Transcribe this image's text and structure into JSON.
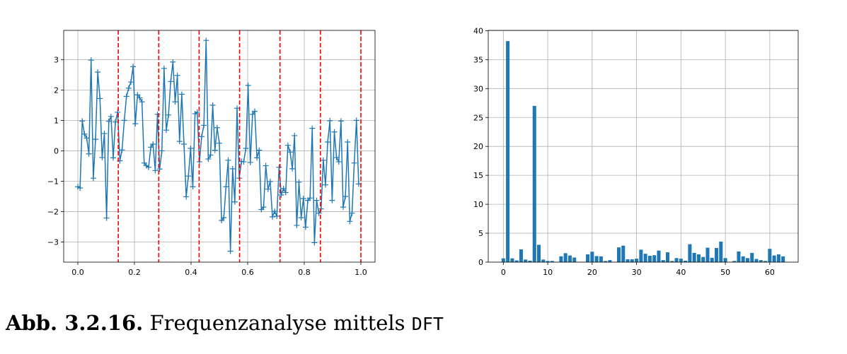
{
  "chart_data": [
    {
      "type": "line",
      "title": "",
      "xlabel": "",
      "ylabel": "",
      "xlim": [
        -0.05,
        1.05
      ],
      "ylim": [
        -3.66,
        3.96
      ],
      "grid": true,
      "xticks": [
        "0.0",
        "0.2",
        "0.4",
        "0.6",
        "0.8",
        "1.0"
      ],
      "yticks": [
        "−3",
        "−2",
        "−1",
        "0",
        "1",
        "2",
        "3"
      ],
      "xtick_values": [
        0,
        0.2,
        0.4,
        0.6,
        0.8,
        1.0
      ],
      "ytick_values": [
        -3,
        -2,
        -1,
        0,
        1,
        2,
        3
      ],
      "n_points": 128,
      "x_step": 0.0078125,
      "marker": "+",
      "line_color": "#1f77b4",
      "y": [
        -1.18,
        -1.22,
        0.98,
        0.55,
        0.42,
        -0.1,
        2.98,
        -0.9,
        0.38,
        2.59,
        1.72,
        -0.22,
        0.57,
        -2.21,
        0.97,
        1.13,
        -0.23,
        0.95,
        1.27,
        -0.33,
        0.03,
        1.0,
        1.79,
        2.06,
        2.26,
        2.77,
        0.89,
        1.84,
        1.74,
        1.61,
        -0.4,
        -0.49,
        -0.54,
        0.12,
        0.22,
        -0.65,
        1.2,
        -0.6,
        0,
        2.71,
        0.68,
        1.18,
        2.28,
        2.92,
        1.61,
        2.48,
        0.31,
        1.86,
        0.22,
        -1.51,
        -0.83,
        0.08,
        -1.18,
        1.22,
        1.27,
        -0.36,
        0.47,
        0.84,
        3.63,
        -0.27,
        -0.14,
        1.5,
        0.02,
        0.76,
        0.25,
        -2.29,
        -2.2,
        -1.18,
        -0.31,
        -3.3,
        -0.59,
        -1.68,
        1.4,
        -0.9,
        -0.35,
        -0.36,
        0.08,
        2.15,
        -0.38,
        1.2,
        1.3,
        -0.23,
        0.02,
        -1.93,
        -1.85,
        -0.49,
        -1.26,
        -1.01,
        -2.17,
        -1.99,
        -2.15,
        -0.54,
        -1.45,
        -1.24,
        -1.37,
        0.18,
        -0.04,
        -0.59,
        0.5,
        -2.45,
        -1.03,
        -2.2,
        -1.57,
        -2.51,
        -1.63,
        -1.55,
        0.74,
        -3.02,
        -1.63,
        -2.05,
        -1.91,
        -0.31,
        -1.12,
        0.29,
        0.99,
        -1.63,
        0.62,
        -0.22,
        -0.36,
        0.98,
        -1.85,
        -1.5,
        0.29,
        -2.32,
        -2.05,
        -0.4,
        1.0,
        -1.09
      ],
      "vlines": {
        "x": [
          0.142857,
          0.285714,
          0.428571,
          0.571429,
          0.714286,
          0.857143,
          1.0
        ],
        "color": "#ff0000",
        "style": "dashed"
      }
    },
    {
      "type": "bar",
      "title": "",
      "xlabel": "",
      "ylabel": "",
      "xlim": [
        -3.4,
        66.4
      ],
      "ylim": [
        0,
        40.05
      ],
      "grid": true,
      "xticks": [
        "0",
        "10",
        "20",
        "30",
        "40",
        "50",
        "60"
      ],
      "yticks": [
        "0",
        "5",
        "10",
        "15",
        "20",
        "25",
        "30",
        "35",
        "40"
      ],
      "xtick_values": [
        0,
        10,
        20,
        30,
        40,
        50,
        60
      ],
      "ytick_values": [
        0,
        5,
        10,
        15,
        20,
        25,
        30,
        35,
        40
      ],
      "bar_color": "#1f77b4",
      "categories": [
        0,
        1,
        2,
        3,
        4,
        5,
        6,
        7,
        8,
        9,
        10,
        11,
        12,
        13,
        14,
        15,
        16,
        17,
        18,
        19,
        20,
        21,
        22,
        23,
        24,
        25,
        26,
        27,
        28,
        29,
        30,
        31,
        32,
        33,
        34,
        35,
        36,
        37,
        38,
        39,
        40,
        41,
        42,
        43,
        44,
        45,
        46,
        47,
        48,
        49,
        50,
        51,
        52,
        53,
        54,
        55,
        56,
        57,
        58,
        59,
        60,
        61,
        62,
        63
      ],
      "values": [
        0.65,
        38.2,
        0.65,
        0.3,
        2.2,
        0.45,
        0.25,
        27.0,
        3.0,
        0.45,
        0.2,
        0.2,
        0.05,
        1.0,
        1.55,
        1.15,
        0.8,
        0.02,
        0.02,
        1.35,
        1.8,
        1.05,
        1.0,
        0.2,
        0.35,
        0.02,
        2.55,
        2.85,
        0.5,
        0.5,
        0.6,
        2.15,
        1.45,
        1.1,
        1.2,
        2.0,
        0.35,
        1.7,
        0.2,
        0.7,
        0.6,
        0.25,
        3.1,
        1.6,
        1.35,
        0.9,
        2.5,
        0.75,
        2.45,
        3.55,
        0.7,
        0.02,
        0.2,
        1.85,
        1.0,
        0.7,
        1.6,
        0.55,
        0.35,
        0.2,
        2.3,
        1.15,
        1.35,
        1.0
      ]
    }
  ],
  "caption": {
    "label": "Abb. 3.2.16.",
    "text": "Frequenzanalyse mittels",
    "code": "DFT"
  }
}
